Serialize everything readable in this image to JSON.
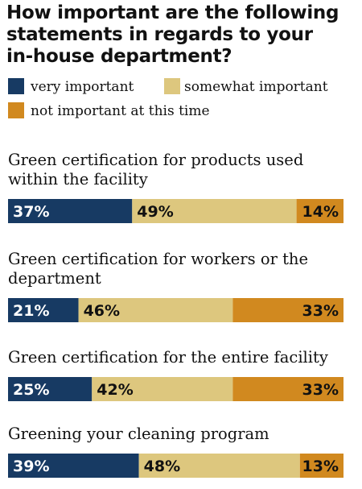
{
  "colors": {
    "very_important": "#173a63",
    "somewhat_important": "#ddc77e",
    "not_important": "#d1891f",
    "text_dark": "#111111",
    "text_light": "#ffffff"
  },
  "chart_data": {
    "type": "bar",
    "orientation": "horizontal",
    "stacked": true,
    "title_lines": [
      "How important are the following",
      "statements in regards to your",
      "in-house department?"
    ],
    "legend_entries": [
      "very important",
      "somewhat important",
      "not important at this time"
    ],
    "categories": [
      [
        "Green certification for products used",
        "within the facility"
      ],
      [
        "Green certification for workers or the",
        "department"
      ],
      [
        "Green certification for the entire facility"
      ],
      [
        "Greening your cleaning program"
      ]
    ],
    "series": [
      {
        "name": "very important",
        "values": [
          37,
          21,
          25,
          39
        ],
        "labels": [
          "37%",
          "21%",
          "25%",
          "39%"
        ]
      },
      {
        "name": "somewhat important",
        "values": [
          49,
          46,
          42,
          48
        ],
        "labels": [
          "49%",
          "46%",
          "42%",
          "48%"
        ]
      },
      {
        "name": "not important at this time",
        "values": [
          14,
          33,
          33,
          13
        ],
        "labels": [
          "14%",
          "33%",
          "33%",
          "13%"
        ]
      }
    ],
    "xlim": [
      0,
      100
    ],
    "grid": false,
    "legend_placement": "top-left"
  }
}
